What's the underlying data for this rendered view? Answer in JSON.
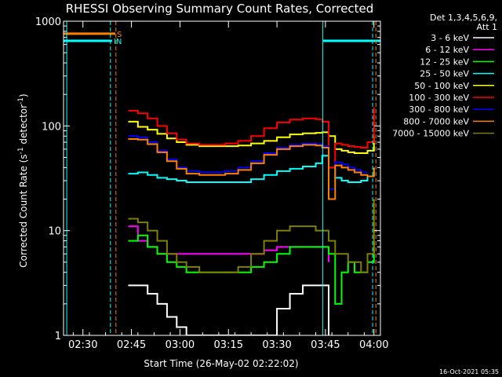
{
  "chart_data": {
    "type": "line",
    "title": "RHESSI Observing Summary Count Rates, Corrected",
    "ylabel_main": "Corrected Count Rate (s",
    "ylabel_sup1": "-1",
    "ylabel_mid": " detector",
    "ylabel_sup2": "-1",
    "ylabel_end": ")",
    "xlabel": "Start Time (26-May-02 02:22:02)",
    "timestamp": "16-Oct-2021 05:35",
    "legend_header": [
      "Det 1,3,4,5,6,9,",
      "Att 1"
    ],
    "y_scale": "log",
    "ylim": [
      1,
      1000
    ],
    "y_ticks": [
      {
        "value": 1,
        "label": "1"
      },
      {
        "value": 10,
        "label": "10"
      },
      {
        "value": 100,
        "label": "100"
      },
      {
        "value": 1000,
        "label": "1000"
      }
    ],
    "xlim_minutes": [
      2.0,
      100.0
    ],
    "x_ticks": [
      {
        "value": 8,
        "label": "02:30"
      },
      {
        "value": 23,
        "label": "02:45"
      },
      {
        "value": 38,
        "label": "03:00"
      },
      {
        "value": 53,
        "label": "03:15"
      },
      {
        "value": 68,
        "label": "03:30"
      },
      {
        "value": 83,
        "label": "03:45"
      },
      {
        "value": 98,
        "label": "04:00"
      }
    ],
    "flags": [
      {
        "label": "S",
        "color": "#ff7f00",
        "y": 760
      },
      {
        "label": "IN",
        "color": "#00ffff",
        "y": 650
      }
    ],
    "series": [
      {
        "name": "3 - 6 keV",
        "color": "#ffffff",
        "x": [
          22,
          25,
          28,
          31,
          34,
          37,
          40,
          44,
          48,
          52,
          56,
          60,
          64,
          68,
          72,
          76,
          80,
          84
        ],
        "y": [
          3,
          3,
          2.5,
          2,
          1.5,
          1.2,
          1,
          1,
          1,
          1,
          1,
          1,
          1,
          1.8,
          2.5,
          3,
          3,
          1
        ]
      },
      {
        "name": "6 - 12 keV",
        "color": "#ff00ff",
        "x": [
          22,
          25,
          28,
          31,
          34,
          37,
          40,
          44,
          48,
          52,
          56,
          60,
          64,
          68,
          72,
          76,
          80,
          84
        ],
        "y": [
          11,
          8,
          7,
          6,
          6,
          6,
          6,
          6,
          6,
          6,
          6,
          6,
          6.5,
          7,
          7,
          7,
          7,
          5
        ]
      },
      {
        "name": "12 - 25 keV",
        "color": "#00ff00",
        "x": [
          22,
          25,
          28,
          31,
          34,
          37,
          40,
          44,
          48,
          52,
          56,
          60,
          64,
          68,
          72,
          76,
          80,
          84,
          86,
          88,
          90,
          92,
          94,
          96,
          98
        ],
        "y": [
          8,
          9,
          7,
          6,
          5,
          4.5,
          4,
          4,
          4,
          4,
          4,
          4.5,
          5,
          6,
          7,
          7,
          7,
          6,
          2,
          4,
          5,
          4,
          4,
          5,
          8
        ]
      },
      {
        "name": "25 - 50 keV",
        "color": "#00ffff",
        "x": [
          22,
          25,
          28,
          31,
          34,
          37,
          40,
          44,
          48,
          52,
          56,
          60,
          64,
          68,
          72,
          76,
          80,
          82,
          84,
          86,
          88,
          90,
          92,
          94,
          96,
          98
        ],
        "y": [
          35,
          36,
          34,
          32,
          31,
          30,
          29,
          29,
          29,
          29,
          29,
          31,
          34,
          37,
          39,
          41,
          44,
          52,
          40,
          32,
          30,
          29,
          29,
          30,
          33,
          40
        ]
      },
      {
        "name": "50 - 100 keV",
        "color": "#ffff00",
        "x": [
          22,
          25,
          28,
          31,
          34,
          37,
          40,
          44,
          48,
          52,
          56,
          60,
          64,
          68,
          72,
          76,
          80,
          82,
          84,
          86,
          88,
          90,
          92,
          94,
          96,
          98
        ],
        "y": [
          110,
          98,
          92,
          84,
          76,
          70,
          66,
          64,
          64,
          64,
          65,
          68,
          72,
          78,
          83,
          85,
          86,
          87,
          80,
          60,
          58,
          56,
          55,
          55,
          58,
          80
        ]
      },
      {
        "name": "100 - 300 keV",
        "color": "#ff0000",
        "x": [
          22,
          25,
          28,
          31,
          34,
          37,
          40,
          44,
          48,
          52,
          56,
          60,
          64,
          68,
          72,
          76,
          80,
          82,
          84,
          86,
          88,
          90,
          92,
          94,
          96,
          98
        ],
        "y": [
          140,
          132,
          118,
          100,
          85,
          74,
          68,
          66,
          66,
          68,
          72,
          80,
          95,
          108,
          115,
          118,
          116,
          110,
          40,
          68,
          66,
          64,
          63,
          62,
          70,
          150
        ]
      },
      {
        "name": "300 - 800 keV",
        "color": "#0000ff",
        "x": [
          22,
          25,
          28,
          31,
          34,
          37,
          40,
          44,
          48,
          52,
          56,
          60,
          64,
          68,
          72,
          76,
          80,
          82,
          84,
          86,
          88,
          90,
          92,
          94,
          96
        ],
        "y": [
          80,
          78,
          70,
          58,
          48,
          40,
          37,
          36,
          36,
          37,
          40,
          46,
          55,
          62,
          66,
          68,
          67,
          64,
          25,
          45,
          43,
          40,
          38,
          36,
          36
        ]
      },
      {
        "name": "800 - 7000 keV",
        "color": "#ff7f00",
        "x": [
          22,
          25,
          28,
          31,
          34,
          37,
          40,
          44,
          48,
          52,
          56,
          60,
          64,
          68,
          72,
          76,
          80,
          82,
          84,
          86,
          88,
          90,
          92,
          94,
          96,
          98
        ],
        "y": [
          75,
          74,
          67,
          56,
          46,
          39,
          35,
          34,
          34,
          35,
          38,
          44,
          53,
          60,
          64,
          66,
          65,
          62,
          20,
          42,
          40,
          38,
          36,
          34,
          33,
          40
        ]
      },
      {
        "name": "7000 - 15000 keV",
        "color": "#808000",
        "x": [
          22,
          25,
          28,
          31,
          34,
          37,
          40,
          44,
          48,
          52,
          56,
          60,
          64,
          68,
          72,
          76,
          80,
          84,
          86,
          88,
          90,
          92,
          94,
          96,
          98
        ],
        "y": [
          13,
          12,
          10,
          8,
          6,
          5,
          4.5,
          4,
          4,
          4,
          4.5,
          6,
          8,
          10,
          11,
          11,
          10,
          8,
          6,
          6,
          5,
          5,
          4,
          6,
          20
        ]
      }
    ]
  }
}
